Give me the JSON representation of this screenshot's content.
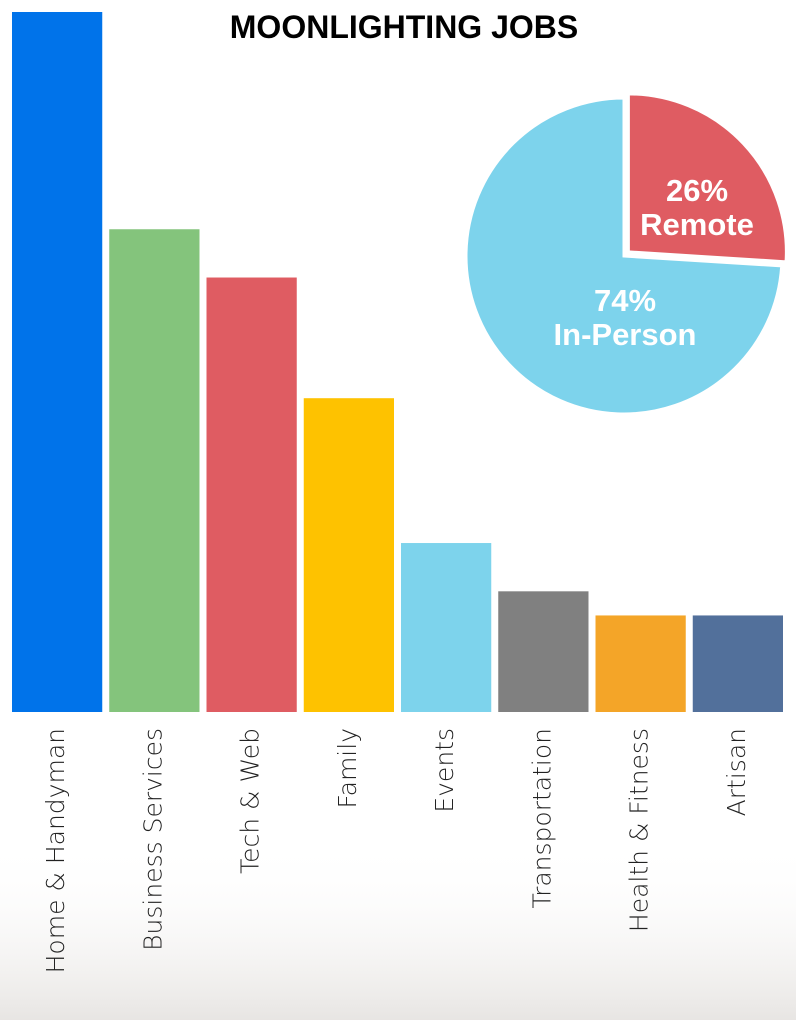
{
  "chart_data": [
    {
      "type": "bar",
      "title": "MOONLIGHTING JOBS",
      "categories": [
        "Home & Handyman",
        "Business Services",
        "Tech & Web",
        "Family",
        "Events",
        "Transportation",
        "Health & Fitness",
        "Artisan"
      ],
      "values": [
        29,
        20,
        18,
        13,
        7,
        5,
        4,
        4
      ],
      "colors": [
        "#0073ea",
        "#84c47c",
        "#df5c62",
        "#fec200",
        "#7dd3ec",
        "#808080",
        "#f4a528",
        "#52709b"
      ],
      "ylim": [
        0,
        29
      ]
    },
    {
      "type": "pie",
      "categories": [
        "Remote",
        "In-Person"
      ],
      "values": [
        26,
        74
      ],
      "value_labels": [
        "26%",
        "74%"
      ],
      "colors": [
        "#df5c62",
        "#7dd3ec"
      ]
    }
  ]
}
